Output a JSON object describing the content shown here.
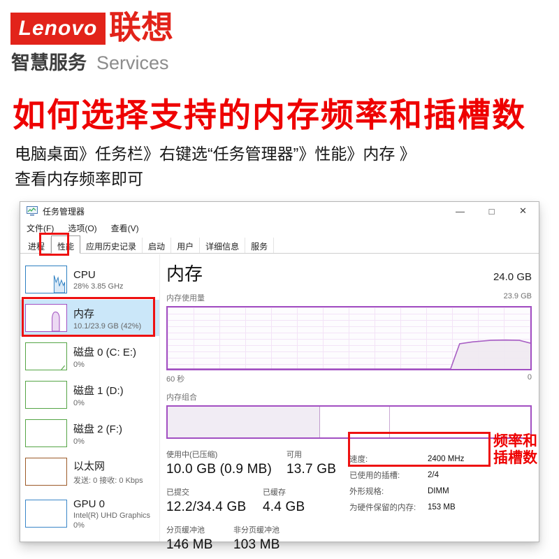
{
  "brand": {
    "logo_text": "Lenovo",
    "logo_cn": "联想",
    "tagline_cn": "智慧服务",
    "tagline_en": "Services"
  },
  "article": {
    "headline": "如何选择支持的内存频率和插槽数",
    "instruction_line1": "电脑桌面》任务栏》右键选“任务管理器”》性能》内存 》",
    "instruction_line2": "查看内存频率即可"
  },
  "window": {
    "title": "任务管理器",
    "controls": {
      "minimize": "—",
      "maximize": "□",
      "close": "✕"
    },
    "menu": [
      "文件(F)",
      "选项(O)",
      "查看(V)"
    ],
    "tabs": [
      "进程",
      "性能",
      "应用历史记录",
      "启动",
      "用户",
      "详细信息",
      "服务"
    ],
    "active_tab": "性能"
  },
  "sidebar": {
    "items": [
      {
        "title": "CPU",
        "sub": "28% 3.85 GHz",
        "color": "#2d7fc1"
      },
      {
        "title": "内存",
        "sub": "10.1/23.9 GB (42%)",
        "color": "#a24fc2",
        "selected": true
      },
      {
        "title": "磁盘 0 (C: E:)",
        "sub": "0%",
        "color": "#55a546"
      },
      {
        "title": "磁盘 1 (D:)",
        "sub": "0%",
        "color": "#55a546"
      },
      {
        "title": "磁盘 2 (F:)",
        "sub": "0%",
        "color": "#55a546"
      },
      {
        "title": "以太网",
        "sub": "发送: 0 接收: 0 Kbps",
        "color": "#9c5a28"
      },
      {
        "title": "GPU 0",
        "sub": "Intel(R) UHD Graphics",
        "sub2": "0%",
        "color": "#3a86c8"
      }
    ]
  },
  "main": {
    "title": "内存",
    "total": "24.0 GB",
    "usage_label": "内存使用量",
    "usage_max": "23.9 GB",
    "time_left": "60 秒",
    "time_right": "0",
    "composition_label": "内存组合",
    "stats": [
      {
        "label": "使用中(已压缩)",
        "value": "10.0 GB (0.9 MB)"
      },
      {
        "label": "可用",
        "value": "13.7 GB"
      },
      {
        "label": "已提交",
        "value": "12.2/34.4 GB"
      },
      {
        "label": "已缓存",
        "value": "4.4 GB"
      },
      {
        "label": "分页缓冲池",
        "value": "146 MB"
      },
      {
        "label": "非分页缓冲池",
        "value": "103 MB"
      }
    ],
    "details": [
      {
        "label": "速度:",
        "value": "2400 MHz"
      },
      {
        "label": "已使用的插槽:",
        "value": "2/4"
      },
      {
        "label": "外形规格:",
        "value": "DIMM"
      },
      {
        "label": "为硬件保留的内存:",
        "value": "153 MB"
      }
    ],
    "annotation": {
      "line1": "频率和",
      "line2": "插槽数"
    }
  },
  "colors": {
    "accent_red": "#ee1111",
    "headline_red": "#ee0000",
    "lenovo_red": "#e2231a",
    "memory_purple": "#a24fc2",
    "selection_blue": "#cbe7f9"
  },
  "chart_data": {
    "type": "area",
    "title": "内存使用量",
    "xlabel_left": "60 秒",
    "xlabel_right": "0",
    "ylim_label": "23.9 GB",
    "current_usage": "10.1/23.9 GB (42%)",
    "points_pct": [
      [
        0,
        0
      ],
      [
        78,
        0
      ],
      [
        80.5,
        41
      ],
      [
        84,
        44
      ],
      [
        89,
        46.5
      ],
      [
        93,
        47
      ],
      [
        97,
        46.5
      ],
      [
        100,
        42
      ]
    ],
    "composition_segments_pct": [
      42,
      19,
      39
    ]
  }
}
